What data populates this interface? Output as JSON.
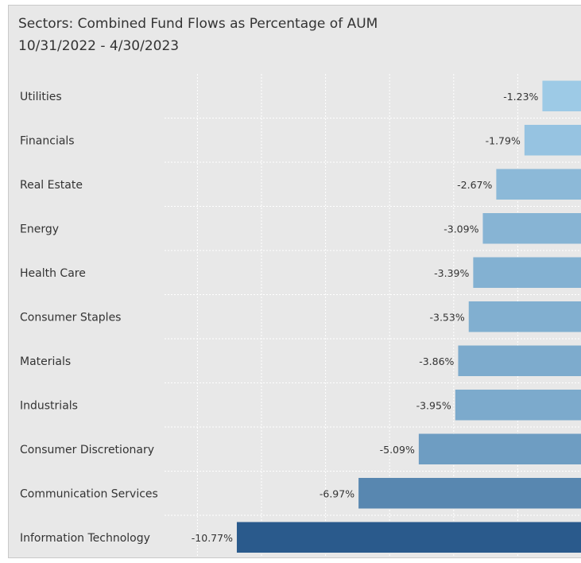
{
  "chart_data": {
    "type": "bar",
    "orientation": "horizontal",
    "title": "Sectors:  Combined Fund Flows as Percentage of AUM",
    "subtitle": "10/31/2022 - 4/30/2023",
    "categories": [
      "Utilities",
      "Financials",
      "Real Estate",
      "Energy",
      "Health Care",
      "Consumer Staples",
      "Materials",
      "Industrials",
      "Consumer Discretionary",
      "Communication Services",
      "Information Technology"
    ],
    "values": [
      -1.23,
      -1.79,
      -2.67,
      -3.09,
      -3.39,
      -3.53,
      -3.86,
      -3.95,
      -5.09,
      -6.97,
      -10.77
    ],
    "data_labels": [
      "-1.23%",
      "-1.79%",
      "-2.67%",
      "-3.09%",
      "-3.39%",
      "-3.53%",
      "-3.86%",
      "-3.95%",
      "-5.09%",
      "-6.97%",
      "-10.77%"
    ],
    "unit": "%",
    "xlim": [
      -12,
      0
    ],
    "grid": true,
    "legend": "none",
    "colors": {
      "lightest": "#9dcae6",
      "darkest": "#2a5a8c",
      "background": "#e8e8e8",
      "grid": "#ffffff",
      "text": "#333333"
    }
  }
}
